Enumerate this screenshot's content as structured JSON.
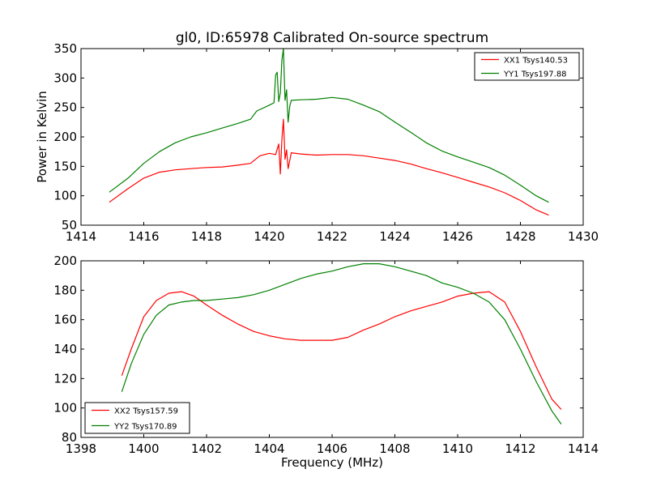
{
  "chart_data": [
    {
      "type": "line",
      "title": "gl0, ID:65978 Calibrated On-source spectrum",
      "xlabel": "",
      "ylabel": "Power in Kelvin",
      "xlim": [
        1414,
        1430
      ],
      "ylim": [
        50,
        350
      ],
      "xticks": [
        "1414",
        "1416",
        "1418",
        "1420",
        "1422",
        "1424",
        "1426",
        "1428",
        "1430"
      ],
      "yticks": [
        "50",
        "100",
        "150",
        "200",
        "250",
        "300",
        "350"
      ],
      "legend_position": "top-right",
      "grid": false,
      "series": [
        {
          "name": "XX1 Tsys140.53",
          "color": "#ff0000",
          "x": [
            1414.9,
            1415.5,
            1416,
            1416.5,
            1417,
            1417.5,
            1418,
            1418.5,
            1419,
            1419.4,
            1419.7,
            1420,
            1420.2,
            1420.3,
            1420.35,
            1420.4,
            1420.45,
            1420.5,
            1420.55,
            1420.6,
            1420.7,
            1421,
            1421.5,
            1422,
            1422.5,
            1423,
            1423.5,
            1424,
            1424.5,
            1425,
            1425.5,
            1426,
            1426.5,
            1427,
            1427.5,
            1428,
            1428.5,
            1428.9
          ],
          "y": [
            89,
            112,
            130,
            140,
            144,
            146,
            148,
            149,
            152,
            155,
            168,
            172,
            170,
            188,
            137,
            195,
            230,
            162,
            178,
            146,
            173,
            171,
            169,
            170,
            170,
            168,
            164,
            160,
            154,
            146,
            139,
            131,
            123,
            115,
            105,
            92,
            76,
            67
          ]
        },
        {
          "name": "YY1 Tsys197.88",
          "color": "#008000",
          "x": [
            1414.9,
            1415.5,
            1416,
            1416.5,
            1417,
            1417.5,
            1418,
            1418.5,
            1419,
            1419.4,
            1419.6,
            1420,
            1420.15,
            1420.2,
            1420.25,
            1420.3,
            1420.35,
            1420.4,
            1420.45,
            1420.5,
            1420.55,
            1420.6,
            1420.65,
            1420.7,
            1421,
            1421.5,
            1422,
            1422.5,
            1423,
            1423.5,
            1424,
            1424.5,
            1425,
            1425.5,
            1426,
            1426.5,
            1427,
            1427.5,
            1428,
            1428.5,
            1428.9
          ],
          "y": [
            106,
            130,
            155,
            175,
            190,
            200,
            207,
            215,
            223,
            230,
            244,
            254,
            258,
            305,
            310,
            260,
            275,
            330,
            350,
            262,
            280,
            225,
            252,
            262,
            263,
            264,
            267,
            264,
            254,
            243,
            225,
            208,
            190,
            176,
            166,
            157,
            148,
            135,
            118,
            100,
            89
          ]
        }
      ]
    },
    {
      "type": "line",
      "title": "",
      "xlabel": "Frequency (MHz)",
      "ylabel": "",
      "xlim": [
        1398,
        1414
      ],
      "ylim": [
        80,
        200
      ],
      "xticks": [
        "1398",
        "1400",
        "1402",
        "1404",
        "1406",
        "1408",
        "1410",
        "1412",
        "1414"
      ],
      "yticks": [
        "80",
        "100",
        "120",
        "140",
        "160",
        "180",
        "200"
      ],
      "legend_position": "bottom-left",
      "grid": false,
      "series": [
        {
          "name": "XX2 Tsys157.59",
          "color": "#ff0000",
          "x": [
            1399.3,
            1399.6,
            1400,
            1400.4,
            1400.8,
            1401.2,
            1401.6,
            1402,
            1402.5,
            1403,
            1403.5,
            1404,
            1404.5,
            1405,
            1405.5,
            1406,
            1406.5,
            1407,
            1407.5,
            1408,
            1408.5,
            1409,
            1409.5,
            1410,
            1410.5,
            1411,
            1411.5,
            1412,
            1412.5,
            1413,
            1413.3
          ],
          "y": [
            122,
            140,
            162,
            173,
            178,
            179,
            176,
            170,
            163,
            157,
            152,
            149,
            147,
            146,
            146,
            146,
            148,
            153,
            157,
            162,
            166,
            169,
            172,
            176,
            178,
            179,
            172,
            152,
            128,
            106,
            99
          ]
        },
        {
          "name": "YY2 Tsys170.89",
          "color": "#008000",
          "x": [
            1399.3,
            1399.6,
            1400,
            1400.4,
            1400.8,
            1401.2,
            1401.6,
            1402,
            1402.5,
            1403,
            1403.5,
            1404,
            1404.5,
            1405,
            1405.5,
            1406,
            1406.5,
            1407,
            1407.5,
            1408,
            1408.5,
            1409,
            1409.5,
            1410,
            1410.5,
            1411,
            1411.5,
            1412,
            1412.5,
            1413,
            1413.3
          ],
          "y": [
            111,
            130,
            150,
            163,
            170,
            172,
            173,
            173,
            174,
            175,
            177,
            180,
            184,
            188,
            191,
            193,
            196,
            198,
            198,
            196,
            193,
            190,
            185,
            182,
            178,
            172,
            160,
            140,
            118,
            98,
            89
          ]
        }
      ]
    }
  ]
}
